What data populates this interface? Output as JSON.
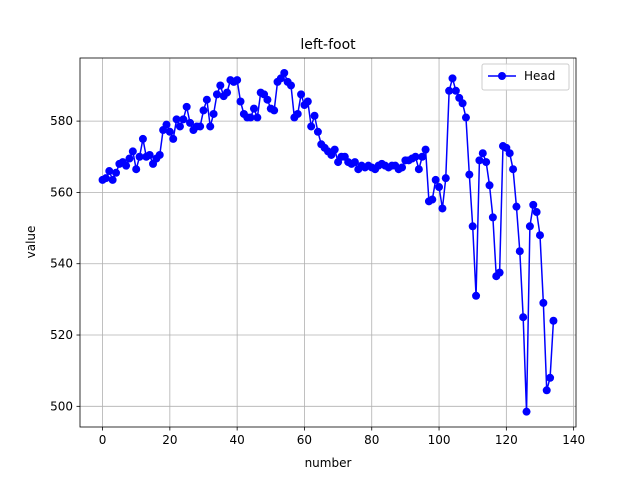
{
  "chart_data": {
    "type": "line",
    "title": "left-foot",
    "xlabel": "number",
    "ylabel": "value",
    "xlim": [
      -6.7,
      140.7
    ],
    "ylim": [
      494.2,
      597.7
    ],
    "xticks": [
      0,
      20,
      40,
      60,
      80,
      100,
      120,
      140
    ],
    "yticks": [
      500,
      520,
      540,
      560,
      580
    ],
    "grid": true,
    "legend": {
      "placement": "top-right"
    },
    "series": [
      {
        "name": "Head",
        "color": "#0000ff",
        "marker": "circle",
        "y": [
          563.5,
          564.0,
          566.0,
          563.5,
          565.5,
          568.0,
          568.5,
          567.5,
          569.5,
          571.5,
          566.5,
          570.0,
          575.0,
          570.0,
          570.5,
          568.0,
          569.5,
          570.5,
          577.5,
          579.0,
          577.0,
          575.0,
          580.5,
          578.5,
          580.5,
          584.0,
          579.5,
          577.5,
          578.5,
          578.5,
          583.0,
          586.0,
          578.5,
          582.0,
          587.5,
          590.0,
          587.0,
          588.0,
          591.5,
          591.0,
          591.5,
          585.5,
          582.0,
          581.0,
          581.0,
          583.5,
          581.0,
          588.0,
          587.5,
          586.0,
          583.5,
          583.0,
          591.0,
          592.0,
          593.5,
          591.0,
          590.0,
          581.0,
          582.0,
          587.5,
          584.5,
          585.5,
          578.5,
          581.5,
          577.0,
          573.5,
          572.5,
          571.5,
          570.5,
          572.0,
          568.5,
          570.0,
          570.0,
          568.5,
          568.0,
          568.5,
          566.5,
          567.5,
          567.0,
          567.5,
          567.0,
          566.5,
          567.5,
          568.0,
          567.5,
          567.0,
          567.5,
          567.5,
          566.5,
          567.0,
          569.0,
          569.0,
          569.5,
          570.0,
          566.5,
          570.0,
          572.0,
          557.5,
          558.0,
          563.5,
          561.5,
          555.5,
          564.0,
          588.5,
          592.0,
          588.5,
          586.5,
          585.0,
          581.0,
          565.0,
          550.5,
          531.0,
          569.0,
          571.0,
          568.5,
          562.0,
          553.0,
          536.5,
          537.5,
          573.0,
          572.5,
          571.0,
          566.5,
          556.0,
          543.5,
          525.0,
          498.5,
          550.5,
          556.5,
          554.5,
          548.0,
          529.0,
          504.5,
          508.0,
          524.0
        ]
      }
    ]
  }
}
